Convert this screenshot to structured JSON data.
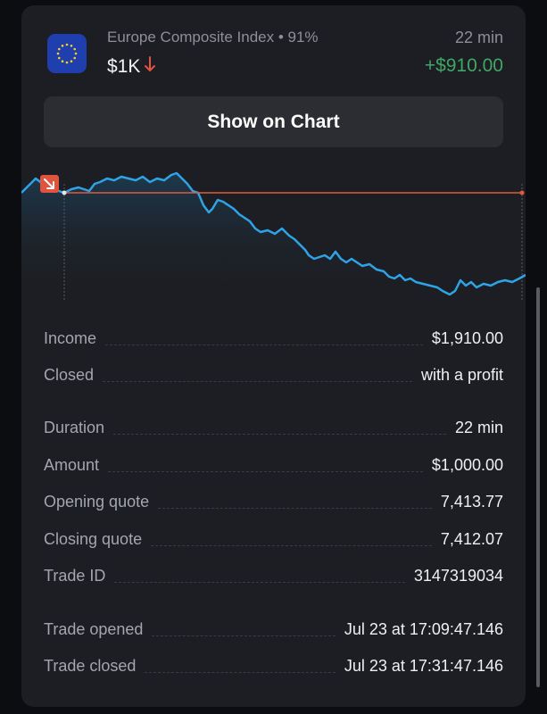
{
  "header": {
    "asset_name": "Europe Composite Index • 91%",
    "amount": "$1K",
    "direction_icon": "arrow-down-icon",
    "duration": "22 min",
    "profit": "+$910.00",
    "colors": {
      "profit": "#3fa765",
      "down": "#e0533d",
      "accent_line": "#e05a3d",
      "chart_line": "#2fa3e6"
    }
  },
  "show_chart_label": "Show on Chart",
  "details": {
    "income": {
      "label": "Income",
      "value": "$1,910.00"
    },
    "closed": {
      "label": "Closed",
      "value": "with a profit"
    },
    "duration": {
      "label": "Duration",
      "value": "22 min"
    },
    "amount": {
      "label": "Amount",
      "value": "$1,000.00"
    },
    "opening_quote": {
      "label": "Opening quote",
      "value": "7,413.77"
    },
    "closing_quote": {
      "label": "Closing quote",
      "value": "7,412.07"
    },
    "trade_id": {
      "label": "Trade ID",
      "value": "3147319034"
    },
    "trade_opened": {
      "label": "Trade opened",
      "value": "Jul 23 at 17:09:47.146"
    },
    "trade_closed": {
      "label": "Trade closed",
      "value": "Jul 23 at 17:31:47.146"
    }
  }
}
